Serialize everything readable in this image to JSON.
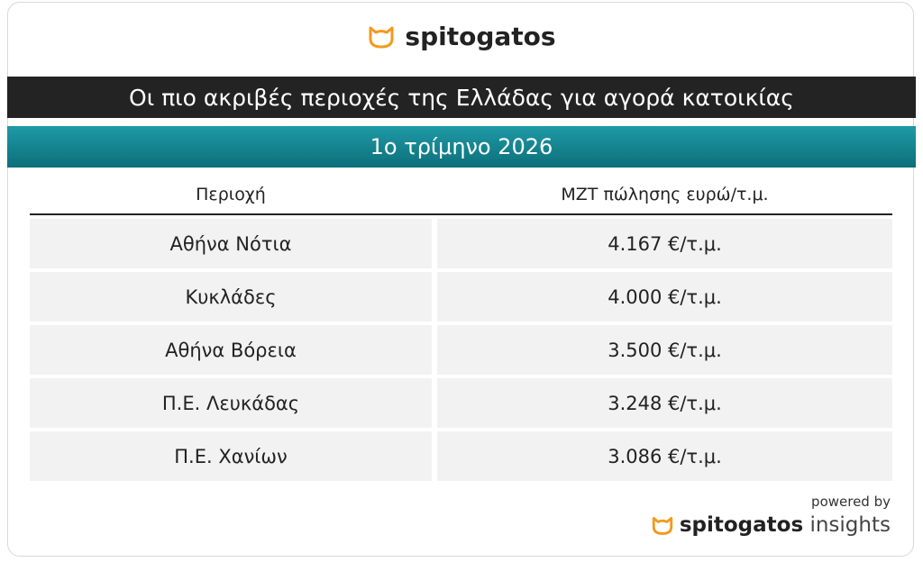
{
  "header": {
    "logo": "spitogatos",
    "title": "Οι πιο ακριβές περιοχές της Ελλάδας για αγορά κατοικίας",
    "subtitle": "1ο τρίμηνο 2026"
  },
  "table": {
    "columns": [
      "Περιοχή",
      "ΜΖΤ πώλησης ευρώ/τ.μ."
    ],
    "rows": [
      [
        "Αθήνα Νότια",
        "4.167 €/τ.μ."
      ],
      [
        "Κυκλάδες",
        "4.000 €/τ.μ."
      ],
      [
        "Αθήνα Βόρεια",
        "3.500 €/τ.μ."
      ],
      [
        "Π.Ε. Λευκάδας",
        "3.248 €/τ.μ."
      ],
      [
        "Π.Ε. Χανίων",
        "3.086 €/τ.μ."
      ]
    ]
  },
  "footer": {
    "powered_by": "powered by",
    "logo": "spitogatos",
    "logo_suffix": "insights"
  }
}
